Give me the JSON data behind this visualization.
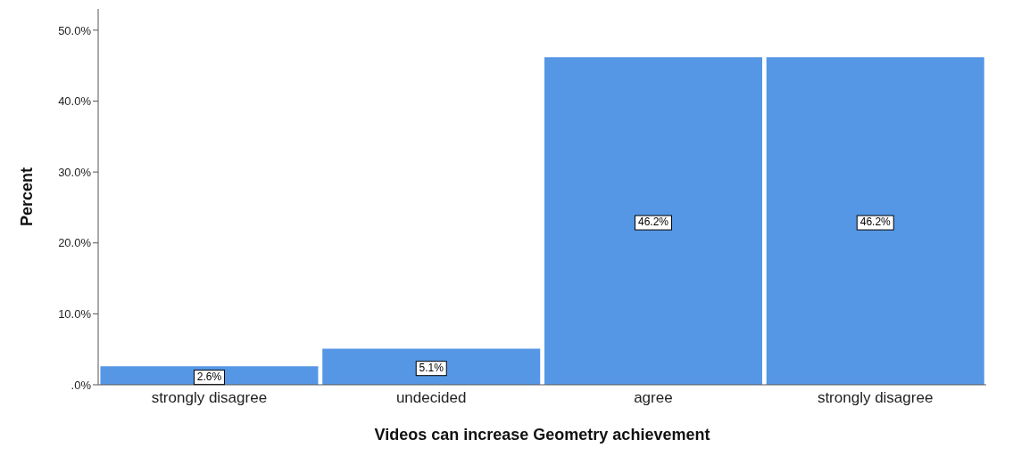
{
  "chart_data": {
    "type": "bar",
    "xlabel": "Videos can increase Geometry achievement",
    "ylabel": "Percent",
    "categories": [
      "strongly disagree",
      "undecided",
      "agree",
      "strongly disagree"
    ],
    "values": [
      2.6,
      5.1,
      46.2,
      46.2
    ],
    "color": "#5597e5",
    "value_labels": [
      "2.6%",
      "5.1%",
      "46.2%",
      "46.2%"
    ],
    "ylim": [
      0,
      53
    ],
    "yticks": [
      {
        "value": 0,
        "label": ".0%"
      },
      {
        "value": 10,
        "label": "10.0%"
      },
      {
        "value": 20,
        "label": "20.0%"
      },
      {
        "value": 30,
        "label": "30.0%"
      },
      {
        "value": 40,
        "label": "40.0%"
      },
      {
        "value": 50,
        "label": "50.0%"
      }
    ],
    "grid": false,
    "legend": false
  }
}
